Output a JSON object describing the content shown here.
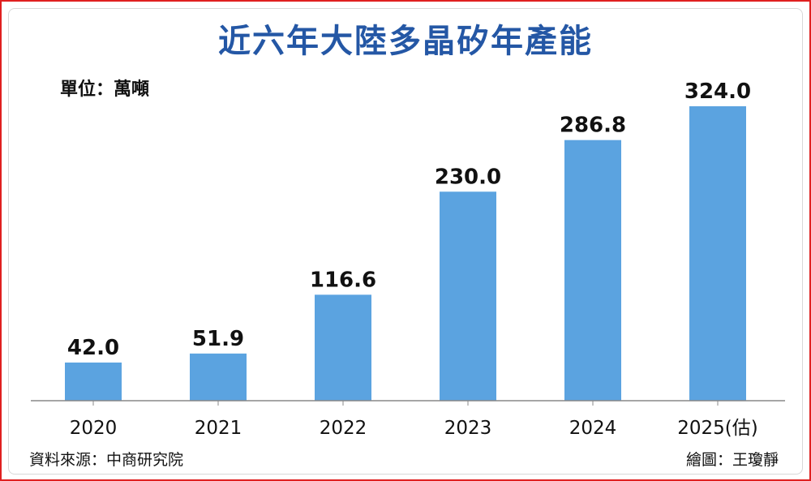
{
  "title": "近六年大陸多晶矽年產能",
  "unit_label": "單位：萬噸",
  "source": "資料來源：中商研究院",
  "credit": "繪圖：王瓊靜",
  "colors": {
    "bar": "#5ba3e0",
    "title": "#2457a5",
    "frame": "#e02020",
    "axis": "#888888"
  },
  "chart_data": {
    "type": "bar",
    "categories": [
      "2020",
      "2021",
      "2022",
      "2023",
      "2024",
      "2025(估)"
    ],
    "values": [
      42.0,
      51.9,
      116.6,
      230.0,
      286.8,
      324.0
    ],
    "value_labels": [
      "42.0",
      "51.9",
      "116.6",
      "230.0",
      "286.8",
      "324.0"
    ],
    "title": "近六年大陸多晶矽年產能",
    "xlabel": "",
    "ylabel": "單位：萬噸",
    "ylim": [
      0,
      324.0
    ],
    "grid": false,
    "legend": "none"
  }
}
